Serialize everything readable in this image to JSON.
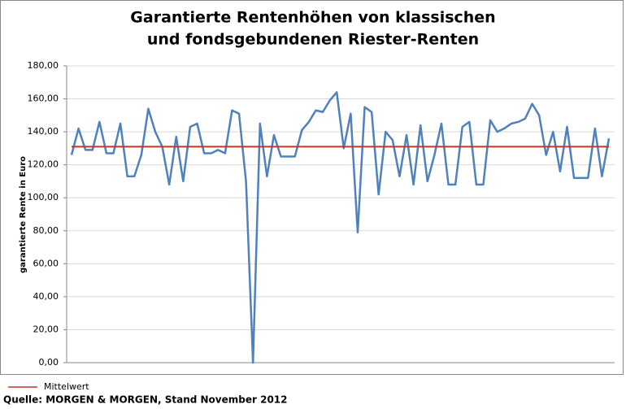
{
  "chart_data": {
    "type": "line",
    "title": [
      "Garantierte Rentenhöhen von klassischen",
      "und fondsgebundenen Riester-Renten"
    ],
    "y_label": "garantierte Rente in Euro",
    "color": "#4f81bd",
    "values": [
      126,
      142,
      129,
      129,
      146,
      127,
      127,
      145,
      113,
      113,
      126,
      154,
      140,
      131,
      108,
      137,
      110,
      143,
      145,
      127,
      127,
      129,
      127,
      153,
      151,
      110,
      0,
      145,
      113,
      138,
      125,
      125,
      125,
      141,
      146,
      153,
      152,
      159,
      164,
      130,
      151,
      79,
      155,
      152,
      102,
      140,
      135,
      113,
      138,
      108,
      144,
      110,
      126,
      145,
      108,
      108,
      143,
      146,
      108,
      108,
      147,
      140,
      142,
      145,
      146,
      148,
      157,
      150,
      126,
      140,
      116,
      143,
      112,
      112,
      112,
      142,
      113,
      136
    ],
    "reference_line": {
      "name": "Mittelwert",
      "value": 131,
      "color": "#c0392b"
    },
    "ylim": [
      0,
      180
    ],
    "yticks": [
      {
        "value": 0,
        "label": "0,00"
      },
      {
        "value": 20,
        "label": "20,00"
      },
      {
        "value": 40,
        "label": "40,00"
      },
      {
        "value": 60,
        "label": "60,00"
      },
      {
        "value": 80,
        "label": "80,00"
      },
      {
        "value": 100,
        "label": "100,00"
      },
      {
        "value": 120,
        "label": "120,00"
      },
      {
        "value": 140,
        "label": "140,00"
      },
      {
        "value": 160,
        "label": "160,00"
      },
      {
        "value": 180,
        "label": "180,00"
      }
    ],
    "grid": true,
    "source": "Quelle: MORGEN & MORGEN, Stand November 2012"
  }
}
